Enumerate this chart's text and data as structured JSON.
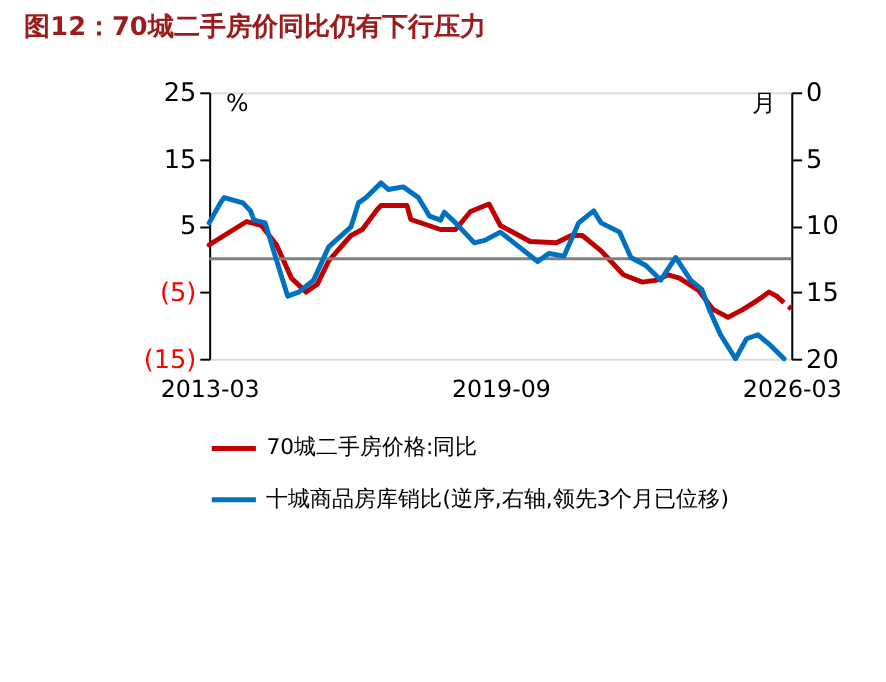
{
  "chart_data": {
    "type": "line",
    "title": "图12：70城二手房价同比仍有下行压力",
    "ylabel": "%",
    "y2label": "月",
    "xlim": [
      "2013-03",
      "2026-03"
    ],
    "xticks": [
      "2013-03",
      "2019-09",
      "2026-03"
    ],
    "ylim": [
      -15,
      25
    ],
    "yticks": [
      {
        "value": -15,
        "label": "(15)"
      },
      {
        "value": -5,
        "label": "(5)"
      },
      5,
      15,
      25
    ],
    "y2lim": [
      20,
      0
    ],
    "y2ticks": [
      0,
      5,
      10,
      15,
      20
    ],
    "grid": false,
    "legend": "bottom",
    "marker": "none",
    "ref_lines": [
      {
        "axis": "y",
        "value": 0,
        "color": "#808080"
      }
    ],
    "series": [
      {
        "name": "70城二手房价格:同比",
        "color": "#c00000",
        "line_style": "solid",
        "x": [
          "2013-03",
          "2013-07",
          "2014-01",
          "2014-05",
          "2014-09",
          "2015-01",
          "2015-05",
          "2015-08",
          "2015-11",
          "2016-05",
          "2016-08",
          "2016-12",
          "2017-01",
          "2017-08",
          "2017-09",
          "2018-05",
          "2018-09",
          "2019-01",
          "2019-05",
          "2019-06",
          "2019-09",
          "2020-05",
          "2020-12",
          "2021-04",
          "2021-07",
          "2021-12",
          "2022-06",
          "2022-11",
          "2023-03",
          "2023-06",
          "2023-09",
          "2024-02",
          "2024-06",
          "2024-10",
          "2025-02",
          "2025-06",
          "2025-09",
          "2025-11"
        ],
        "values": [
          2.1,
          3.5,
          5.6,
          5.0,
          2.1,
          -2.9,
          -5.0,
          -3.8,
          -0.3,
          3.5,
          4.4,
          7.4,
          8.0,
          8.0,
          5.9,
          4.4,
          4.4,
          7.1,
          8.0,
          8.2,
          5.0,
          2.6,
          2.4,
          3.5,
          3.5,
          1.2,
          -2.4,
          -3.5,
          -3.2,
          -2.4,
          -2.9,
          -4.7,
          -7.6,
          -8.8,
          -7.6,
          -6.2,
          -5.0,
          -5.6
        ]
      },
      {
        "color": "#c00000",
        "line_style": "dashed",
        "x": [
          "2025-11",
          "2026-03"
        ],
        "values": [
          -5.6,
          -7.5
        ]
      },
      {
        "name": "十城商品房库销比(逆序,右轴,领先3个月已位移)",
        "color": "#0070c0",
        "line_style": "solid",
        "axis": "y2",
        "x": [
          "2013-03",
          "2013-06",
          "2013-07",
          "2013-12",
          "2014-02",
          "2014-03",
          "2014-06",
          "2014-09",
          "2014-12",
          "2015-03",
          "2015-07",
          "2015-11",
          "2016-01",
          "2016-05",
          "2016-07",
          "2016-09",
          "2017-01",
          "2017-03",
          "2017-07",
          "2017-11",
          "2018-02",
          "2018-05",
          "2018-06",
          "2018-09",
          "2019-02",
          "2019-05",
          "2019-09",
          "2020-02",
          "2020-07",
          "2020-10",
          "2021-02",
          "2021-06",
          "2021-10",
          "2021-12",
          "2022-05",
          "2022-08",
          "2022-12",
          "2023-04",
          "2023-08",
          "2023-12",
          "2024-03",
          "2024-05",
          "2024-08",
          "2024-12",
          "2025-03",
          "2025-06",
          "2025-09",
          "2026-01"
        ],
        "values": [
          9.8,
          8.3,
          7.9,
          8.3,
          8.9,
          9.6,
          9.8,
          12.6,
          15.3,
          15.0,
          14.1,
          11.6,
          11.1,
          10.1,
          8.3,
          7.9,
          6.8,
          7.3,
          7.1,
          7.9,
          9.3,
          9.6,
          9.0,
          9.8,
          11.3,
          11.1,
          10.5,
          11.6,
          12.7,
          12.1,
          12.3,
          9.8,
          8.9,
          9.8,
          10.5,
          12.4,
          13.0,
          14.1,
          12.4,
          14.1,
          14.8,
          16.3,
          18.2,
          20.0,
          18.5,
          18.2,
          18.9,
          20.0
        ]
      }
    ]
  }
}
